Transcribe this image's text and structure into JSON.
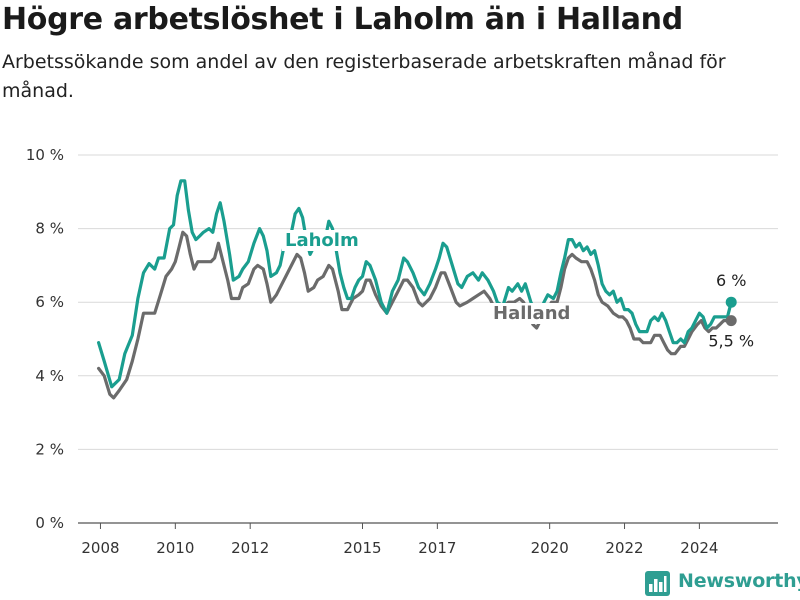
{
  "chart_data": {
    "type": "line",
    "title": "Högre arbetslöshet i Laholm än i Halland",
    "subtitle": "Arbetssökande som andel av den registerbaserade arbetskraften månad för månad.",
    "ylim": [
      0,
      10
    ],
    "y_ticks": [
      "0 %",
      "2 %",
      "4 %",
      "6 %",
      "8 %",
      "10 %"
    ],
    "y_tick_values": [
      0,
      2,
      4,
      6,
      8,
      10
    ],
    "x_ticks": [
      "2008",
      "2010",
      "2012",
      "2015",
      "2017",
      "2020",
      "2022",
      "2024"
    ],
    "x_tick_values": [
      2008,
      2010,
      2012,
      2015,
      2017,
      2020,
      2022,
      2024
    ],
    "grid": "horizontal",
    "series": [
      {
        "name": "Laholm",
        "color": "#1a9e8f",
        "end_label": "6 %",
        "points": [
          [
            2007.95,
            4.9
          ],
          [
            2008.1,
            4.4
          ],
          [
            2008.3,
            3.7
          ],
          [
            2008.5,
            3.9
          ],
          [
            2008.65,
            4.6
          ],
          [
            2008.85,
            5.1
          ],
          [
            2009.0,
            6.1
          ],
          [
            2009.15,
            6.8
          ],
          [
            2009.3,
            7.05
          ],
          [
            2009.45,
            6.9
          ],
          [
            2009.55,
            7.2
          ],
          [
            2009.7,
            7.2
          ],
          [
            2009.85,
            8.0
          ],
          [
            2009.95,
            8.1
          ],
          [
            2010.05,
            8.9
          ],
          [
            2010.15,
            9.3
          ],
          [
            2010.25,
            9.3
          ],
          [
            2010.35,
            8.5
          ],
          [
            2010.45,
            7.9
          ],
          [
            2010.55,
            7.7
          ],
          [
            2010.65,
            7.8
          ],
          [
            2010.75,
            7.9
          ],
          [
            2010.9,
            8.0
          ],
          [
            2011.0,
            7.9
          ],
          [
            2011.1,
            8.4
          ],
          [
            2011.2,
            8.7
          ],
          [
            2011.3,
            8.2
          ],
          [
            2011.45,
            7.3
          ],
          [
            2011.55,
            6.6
          ],
          [
            2011.7,
            6.7
          ],
          [
            2011.8,
            6.9
          ],
          [
            2011.95,
            7.1
          ],
          [
            2012.1,
            7.6
          ],
          [
            2012.25,
            8.0
          ],
          [
            2012.35,
            7.8
          ],
          [
            2012.45,
            7.4
          ],
          [
            2012.55,
            6.7
          ],
          [
            2012.7,
            6.8
          ],
          [
            2012.8,
            7.0
          ],
          [
            2012.9,
            7.5
          ],
          [
            2013.0,
            7.6
          ],
          [
            2013.1,
            7.9
          ],
          [
            2013.2,
            8.4
          ],
          [
            2013.3,
            8.55
          ],
          [
            2013.4,
            8.3
          ],
          [
            2013.5,
            7.7
          ],
          [
            2013.6,
            7.3
          ],
          [
            2013.7,
            7.5
          ],
          [
            2013.8,
            7.6
          ],
          [
            2013.9,
            7.5
          ],
          [
            2014.0,
            7.7
          ],
          [
            2014.1,
            8.2
          ],
          [
            2014.2,
            8.0
          ],
          [
            2014.3,
            7.4
          ],
          [
            2014.4,
            6.8
          ],
          [
            2014.5,
            6.4
          ],
          [
            2014.6,
            6.1
          ],
          [
            2014.7,
            6.1
          ],
          [
            2014.8,
            6.4
          ],
          [
            2014.9,
            6.6
          ],
          [
            2015.0,
            6.7
          ],
          [
            2015.1,
            7.1
          ],
          [
            2015.2,
            7.0
          ],
          [
            2015.35,
            6.6
          ],
          [
            2015.5,
            6.0
          ],
          [
            2015.65,
            5.7
          ],
          [
            2015.8,
            6.3
          ],
          [
            2015.95,
            6.6
          ],
          [
            2016.1,
            7.2
          ],
          [
            2016.2,
            7.1
          ],
          [
            2016.35,
            6.8
          ],
          [
            2016.5,
            6.4
          ],
          [
            2016.65,
            6.2
          ],
          [
            2016.8,
            6.5
          ],
          [
            2016.95,
            6.9
          ],
          [
            2017.05,
            7.2
          ],
          [
            2017.15,
            7.6
          ],
          [
            2017.25,
            7.5
          ],
          [
            2017.4,
            7.0
          ],
          [
            2017.55,
            6.5
          ],
          [
            2017.65,
            6.4
          ],
          [
            2017.8,
            6.7
          ],
          [
            2017.95,
            6.8
          ],
          [
            2018.1,
            6.6
          ],
          [
            2018.2,
            6.8
          ],
          [
            2018.35,
            6.6
          ],
          [
            2018.5,
            6.3
          ],
          [
            2018.6,
            6.0
          ],
          [
            2018.75,
            5.9
          ],
          [
            2018.9,
            6.4
          ],
          [
            2019.0,
            6.3
          ],
          [
            2019.15,
            6.5
          ],
          [
            2019.25,
            6.3
          ],
          [
            2019.35,
            6.5
          ],
          [
            2019.5,
            6.0
          ],
          [
            2019.6,
            5.8
          ],
          [
            2019.7,
            5.6
          ],
          [
            2019.85,
            6.0
          ],
          [
            2019.95,
            6.2
          ],
          [
            2020.1,
            6.1
          ],
          [
            2020.2,
            6.3
          ],
          [
            2020.3,
            6.8
          ],
          [
            2020.4,
            7.2
          ],
          [
            2020.5,
            7.7
          ],
          [
            2020.6,
            7.7
          ],
          [
            2020.7,
            7.5
          ],
          [
            2020.8,
            7.6
          ],
          [
            2020.9,
            7.4
          ],
          [
            2021.0,
            7.5
          ],
          [
            2021.1,
            7.3
          ],
          [
            2021.2,
            7.4
          ],
          [
            2021.3,
            7.0
          ],
          [
            2021.4,
            6.5
          ],
          [
            2021.5,
            6.3
          ],
          [
            2021.6,
            6.2
          ],
          [
            2021.7,
            6.3
          ],
          [
            2021.8,
            6.0
          ],
          [
            2021.9,
            6.1
          ],
          [
            2022.0,
            5.8
          ],
          [
            2022.1,
            5.8
          ],
          [
            2022.2,
            5.7
          ],
          [
            2022.3,
            5.4
          ],
          [
            2022.4,
            5.2
          ],
          [
            2022.5,
            5.2
          ],
          [
            2022.6,
            5.2
          ],
          [
            2022.7,
            5.5
          ],
          [
            2022.8,
            5.6
          ],
          [
            2022.9,
            5.5
          ],
          [
            2023.0,
            5.7
          ],
          [
            2023.1,
            5.5
          ],
          [
            2023.2,
            5.2
          ],
          [
            2023.3,
            4.9
          ],
          [
            2023.4,
            4.9
          ],
          [
            2023.5,
            5.0
          ],
          [
            2023.6,
            4.9
          ],
          [
            2023.7,
            5.2
          ],
          [
            2023.8,
            5.3
          ],
          [
            2023.9,
            5.5
          ],
          [
            2024.0,
            5.7
          ],
          [
            2024.1,
            5.6
          ],
          [
            2024.2,
            5.3
          ],
          [
            2024.3,
            5.4
          ],
          [
            2024.4,
            5.6
          ],
          [
            2024.5,
            5.6
          ],
          [
            2024.6,
            5.6
          ],
          [
            2024.75,
            5.6
          ],
          [
            2024.85,
            6.0
          ]
        ]
      },
      {
        "name": "Halland",
        "color": "#6b6b6b",
        "end_label": "5,5 %",
        "points": [
          [
            2007.95,
            4.2
          ],
          [
            2008.1,
            4.0
          ],
          [
            2008.25,
            3.5
          ],
          [
            2008.35,
            3.4
          ],
          [
            2008.5,
            3.6
          ],
          [
            2008.7,
            3.9
          ],
          [
            2008.85,
            4.4
          ],
          [
            2009.0,
            5.0
          ],
          [
            2009.15,
            5.7
          ],
          [
            2009.3,
            5.7
          ],
          [
            2009.45,
            5.7
          ],
          [
            2009.6,
            6.2
          ],
          [
            2009.75,
            6.7
          ],
          [
            2009.9,
            6.9
          ],
          [
            2010.0,
            7.1
          ],
          [
            2010.1,
            7.5
          ],
          [
            2010.2,
            7.9
          ],
          [
            2010.3,
            7.8
          ],
          [
            2010.4,
            7.3
          ],
          [
            2010.5,
            6.9
          ],
          [
            2010.6,
            7.1
          ],
          [
            2010.8,
            7.1
          ],
          [
            2010.95,
            7.1
          ],
          [
            2011.05,
            7.2
          ],
          [
            2011.15,
            7.6
          ],
          [
            2011.25,
            7.2
          ],
          [
            2011.4,
            6.6
          ],
          [
            2011.5,
            6.1
          ],
          [
            2011.7,
            6.1
          ],
          [
            2011.8,
            6.4
          ],
          [
            2011.95,
            6.5
          ],
          [
            2012.1,
            6.9
          ],
          [
            2012.2,
            7.0
          ],
          [
            2012.35,
            6.9
          ],
          [
            2012.45,
            6.5
          ],
          [
            2012.55,
            6.0
          ],
          [
            2012.7,
            6.2
          ],
          [
            2012.85,
            6.5
          ],
          [
            2012.95,
            6.7
          ],
          [
            2013.1,
            7.0
          ],
          [
            2013.25,
            7.3
          ],
          [
            2013.35,
            7.2
          ],
          [
            2013.45,
            6.8
          ],
          [
            2013.55,
            6.3
          ],
          [
            2013.7,
            6.4
          ],
          [
            2013.8,
            6.6
          ],
          [
            2013.95,
            6.7
          ],
          [
            2014.1,
            7.0
          ],
          [
            2014.2,
            6.9
          ],
          [
            2014.35,
            6.3
          ],
          [
            2014.45,
            5.8
          ],
          [
            2014.6,
            5.8
          ],
          [
            2014.75,
            6.1
          ],
          [
            2014.9,
            6.2
          ],
          [
            2015.0,
            6.3
          ],
          [
            2015.1,
            6.6
          ],
          [
            2015.2,
            6.6
          ],
          [
            2015.35,
            6.2
          ],
          [
            2015.5,
            5.9
          ],
          [
            2015.65,
            5.7
          ],
          [
            2015.8,
            6.0
          ],
          [
            2015.95,
            6.3
          ],
          [
            2016.1,
            6.6
          ],
          [
            2016.2,
            6.6
          ],
          [
            2016.35,
            6.4
          ],
          [
            2016.5,
            6.0
          ],
          [
            2016.6,
            5.9
          ],
          [
            2016.8,
            6.1
          ],
          [
            2016.95,
            6.4
          ],
          [
            2017.1,
            6.8
          ],
          [
            2017.2,
            6.8
          ],
          [
            2017.35,
            6.4
          ],
          [
            2017.5,
            6.0
          ],
          [
            2017.6,
            5.9
          ],
          [
            2017.8,
            6.0
          ],
          [
            2017.95,
            6.1
          ],
          [
            2018.1,
            6.2
          ],
          [
            2018.25,
            6.3
          ],
          [
            2018.4,
            6.1
          ],
          [
            2018.5,
            5.9
          ],
          [
            2018.6,
            5.8
          ],
          [
            2018.75,
            5.9
          ],
          [
            2018.9,
            6.0
          ],
          [
            2019.05,
            6.0
          ],
          [
            2019.2,
            6.1
          ],
          [
            2019.3,
            6.0
          ],
          [
            2019.45,
            5.7
          ],
          [
            2019.55,
            5.4
          ],
          [
            2019.65,
            5.3
          ],
          [
            2019.8,
            5.6
          ],
          [
            2019.95,
            5.8
          ],
          [
            2020.05,
            6.0
          ],
          [
            2020.2,
            6.0
          ],
          [
            2020.3,
            6.4
          ],
          [
            2020.4,
            6.9
          ],
          [
            2020.5,
            7.2
          ],
          [
            2020.6,
            7.3
          ],
          [
            2020.7,
            7.2
          ],
          [
            2020.85,
            7.1
          ],
          [
            2021.0,
            7.1
          ],
          [
            2021.1,
            6.9
          ],
          [
            2021.2,
            6.6
          ],
          [
            2021.3,
            6.2
          ],
          [
            2021.4,
            6.0
          ],
          [
            2021.55,
            5.9
          ],
          [
            2021.7,
            5.7
          ],
          [
            2021.85,
            5.6
          ],
          [
            2021.95,
            5.6
          ],
          [
            2022.05,
            5.5
          ],
          [
            2022.15,
            5.3
          ],
          [
            2022.25,
            5.0
          ],
          [
            2022.4,
            5.0
          ],
          [
            2022.5,
            4.9
          ],
          [
            2022.7,
            4.9
          ],
          [
            2022.8,
            5.1
          ],
          [
            2022.95,
            5.1
          ],
          [
            2023.05,
            4.9
          ],
          [
            2023.15,
            4.7
          ],
          [
            2023.25,
            4.6
          ],
          [
            2023.35,
            4.6
          ],
          [
            2023.5,
            4.8
          ],
          [
            2023.6,
            4.8
          ],
          [
            2023.7,
            5.0
          ],
          [
            2023.8,
            5.2
          ],
          [
            2023.95,
            5.4
          ],
          [
            2024.05,
            5.5
          ],
          [
            2024.15,
            5.3
          ],
          [
            2024.25,
            5.2
          ],
          [
            2024.35,
            5.3
          ],
          [
            2024.45,
            5.3
          ],
          [
            2024.55,
            5.4
          ],
          [
            2024.65,
            5.5
          ],
          [
            2024.85,
            5.5
          ]
        ]
      }
    ]
  },
  "labels": {
    "laholm": "Laholm",
    "halland": "Halland"
  },
  "brand": {
    "name": "Newsworthy",
    "icon": "newsworthy-logo-icon",
    "color": "#2f9e92"
  }
}
